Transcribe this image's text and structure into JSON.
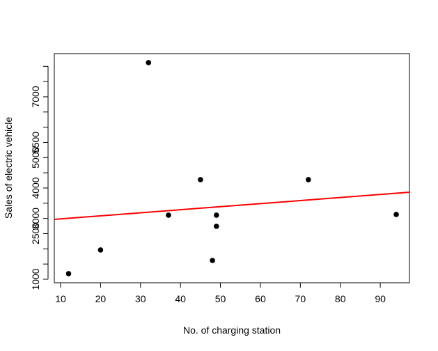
{
  "chart_data": {
    "type": "scatter",
    "x_label": "No. of charging station",
    "y_label": "Sales of electric vehicle",
    "x": [
      12,
      20,
      32,
      37,
      45,
      48,
      49,
      49,
      72,
      94
    ],
    "values": [
      1183,
      1962,
      8122,
      3107,
      4275,
      1618,
      3107,
      2740,
      4275,
      3130
    ],
    "color": "#000000",
    "fit_line": {
      "intercept": 2884,
      "slope": 10.05,
      "color": "#ff0000"
    },
    "xlim": [
      8.43,
      97.3
    ],
    "xticks": [
      10,
      20,
      30,
      40,
      50,
      60,
      70,
      80,
      90
    ],
    "ylim": [
      885,
      8419
    ],
    "yticks": [
      1000,
      2500,
      3000,
      4000,
      5000,
      5500,
      7000
    ],
    "yminor": [
      1500,
      2000,
      3500,
      4500,
      6000,
      6500,
      7500,
      8000
    ]
  }
}
